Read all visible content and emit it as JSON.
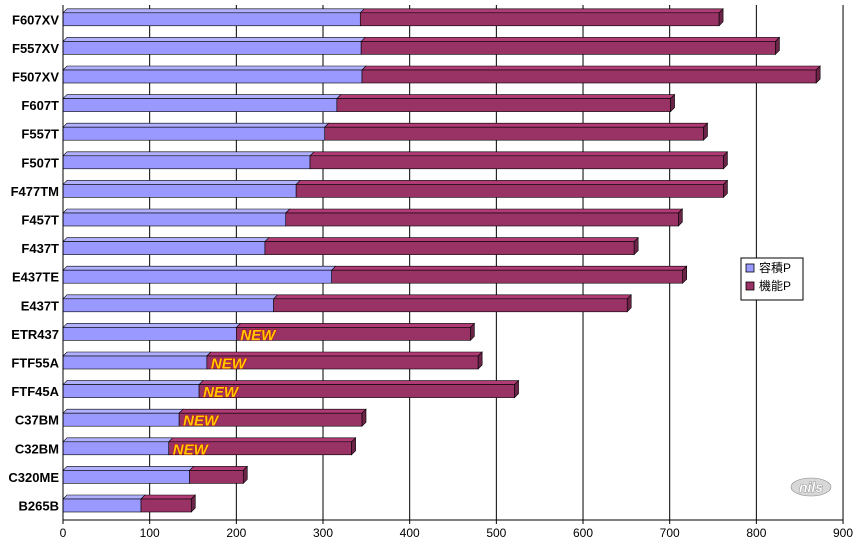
{
  "chart_data": {
    "type": "bar",
    "orientation": "horizontal",
    "stacked": true,
    "categories": [
      "F607XV",
      "F557XV",
      "F507XV",
      "F607T",
      "F557T",
      "F507T",
      "F477TM",
      "F457T",
      "F437T",
      "E437TE",
      "E437T",
      "ETR437",
      "FTF55A",
      "FTF45A",
      "C37BM",
      "C32BM",
      "C320ME",
      "B265B"
    ],
    "series": [
      {
        "name": "容積P",
        "color": "#9999ff",
        "values": [
          343,
          344,
          345,
          316,
          302,
          285,
          269,
          257,
          233,
          310,
          243,
          200,
          166,
          157,
          134,
          122,
          146,
          90
        ]
      },
      {
        "name": "機能P",
        "color": "#993366",
        "values": [
          414,
          478,
          524,
          385,
          437,
          477,
          493,
          453,
          426,
          405,
          408,
          270,
          313,
          364,
          211,
          211,
          62,
          58
        ]
      }
    ],
    "new_marker_text": "NEW",
    "new_categories": [
      "ETR437",
      "FTF55A",
      "FTF45A",
      "C37BM",
      "C32BM"
    ],
    "xlim": [
      0,
      900
    ],
    "xticks": [
      0,
      100,
      200,
      300,
      400,
      500,
      600,
      700,
      800,
      900
    ],
    "xticks_labels": [
      "0",
      "100",
      "200",
      "300",
      "400",
      "500",
      "600",
      "700",
      "800",
      "900"
    ],
    "title": "",
    "xlabel": "",
    "ylabel": "",
    "grid": "vertical",
    "legend": "right",
    "logo_text": "nils"
  }
}
